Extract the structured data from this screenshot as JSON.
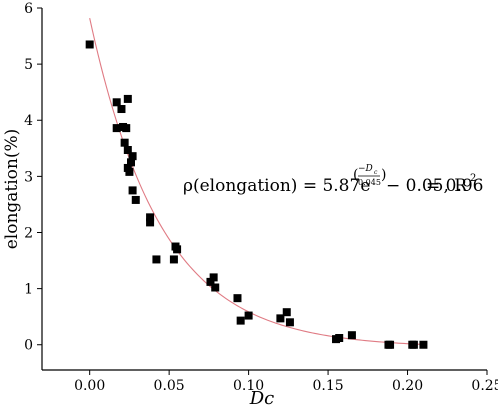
{
  "chart_data": {
    "type": "scatter",
    "xlabel": "Dc",
    "ylabel": "elongation(%)",
    "xlim": [
      -0.03,
      0.25
    ],
    "ylim": [
      -0.45,
      6
    ],
    "x_ticks": [
      0.0,
      0.05,
      0.1,
      0.15,
      0.2,
      0.25
    ],
    "x_tick_labels": [
      "0.00",
      "0.05",
      "0.10",
      "0.15",
      "0.20",
      "0.25"
    ],
    "y_ticks": [
      0,
      1,
      2,
      3,
      4,
      5,
      6
    ],
    "y_tick_labels": [
      "0",
      "1",
      "2",
      "3",
      "4",
      "5",
      "6"
    ],
    "grid": false,
    "marker_color": "#000000",
    "fit_color": "#e07b84",
    "points": [
      [
        0.0,
        5.35
      ],
      [
        0.017,
        4.32
      ],
      [
        0.017,
        3.86
      ],
      [
        0.02,
        4.2
      ],
      [
        0.021,
        3.88
      ],
      [
        0.022,
        3.6
      ],
      [
        0.023,
        3.86
      ],
      [
        0.024,
        4.38
      ],
      [
        0.024,
        3.47
      ],
      [
        0.024,
        3.15
      ],
      [
        0.025,
        3.08
      ],
      [
        0.026,
        3.25
      ],
      [
        0.027,
        2.75
      ],
      [
        0.027,
        3.36
      ],
      [
        0.029,
        2.58
      ],
      [
        0.038,
        2.27
      ],
      [
        0.038,
        2.18
      ],
      [
        0.042,
        1.52
      ],
      [
        0.053,
        1.52
      ],
      [
        0.054,
        1.75
      ],
      [
        0.055,
        1.7
      ],
      [
        0.076,
        1.12
      ],
      [
        0.078,
        1.2
      ],
      [
        0.079,
        1.02
      ],
      [
        0.093,
        0.83
      ],
      [
        0.095,
        0.43
      ],
      [
        0.1,
        0.52
      ],
      [
        0.12,
        0.47
      ],
      [
        0.124,
        0.58
      ],
      [
        0.126,
        0.4
      ],
      [
        0.155,
        0.1
      ],
      [
        0.157,
        0.12
      ],
      [
        0.165,
        0.17
      ],
      [
        0.188,
        0.0
      ],
      [
        0.189,
        0.0
      ],
      [
        0.203,
        0.0
      ],
      [
        0.204,
        0.0
      ],
      [
        0.21,
        0.0
      ]
    ],
    "fit": {
      "a": 5.87,
      "b": 0.045,
      "c": -0.05,
      "x_range": [
        0.0,
        0.21
      ],
      "equation_lhs": "ρ(elongation) = 5.87e",
      "exponent_num": "−D",
      "exponent_sub": "c",
      "exponent_den": "0.045",
      "equation_tail": " − 0.05, R",
      "r2_sup": "2",
      "r2_value": " = 0.96"
    }
  }
}
